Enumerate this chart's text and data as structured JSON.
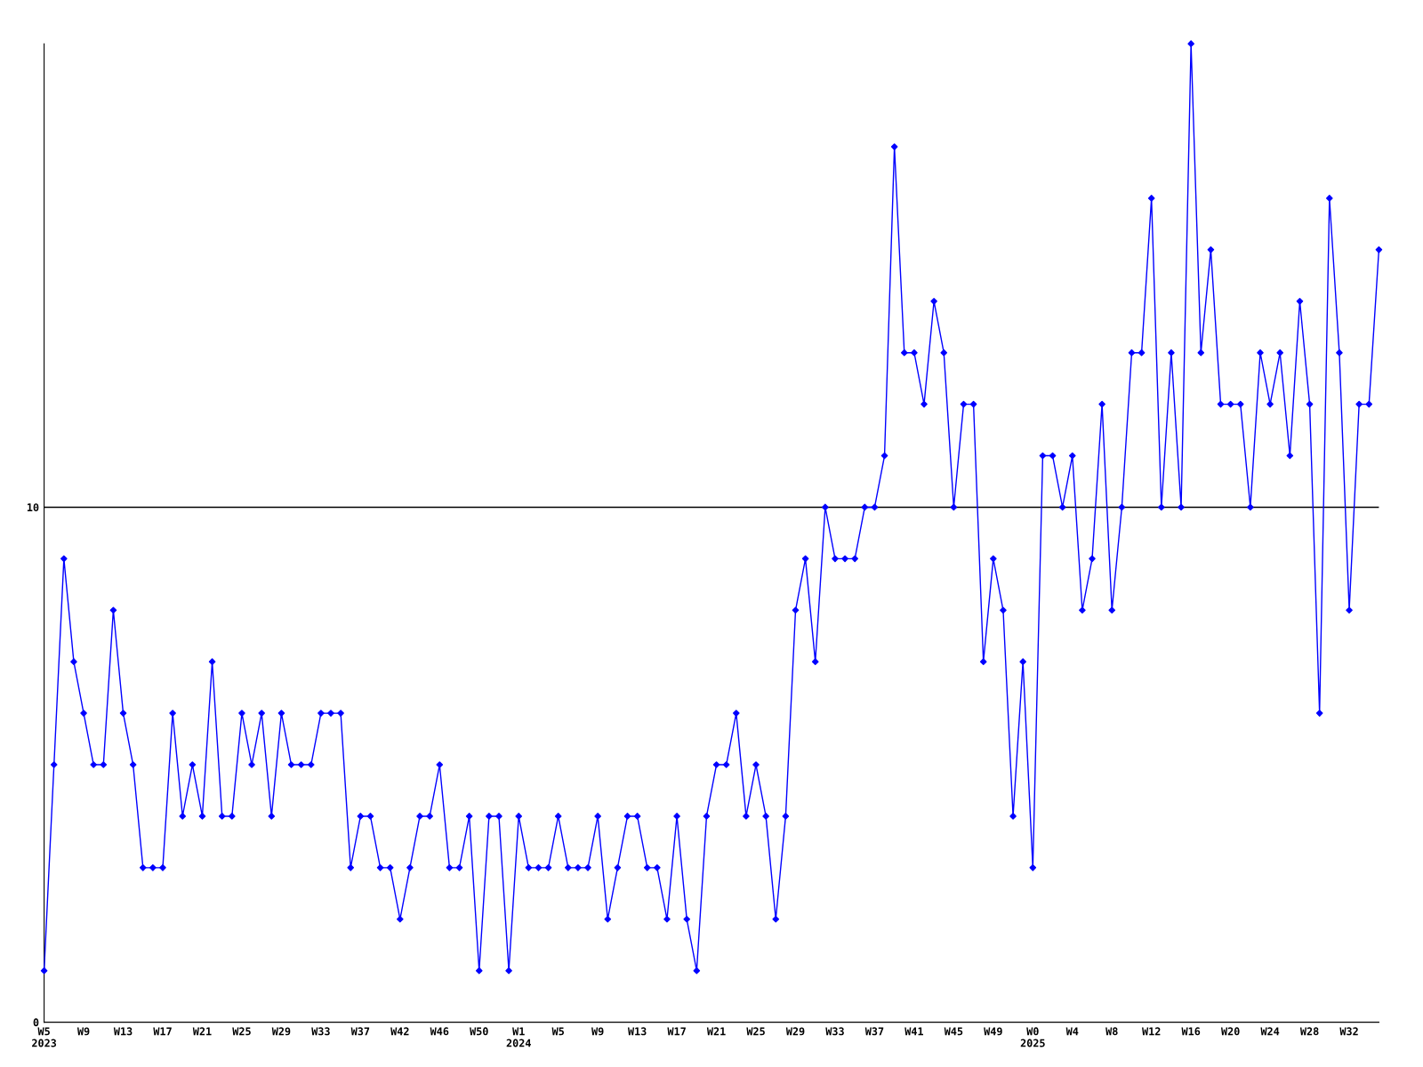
{
  "chart_data": {
    "type": "line",
    "categories": [
      "W5\n2023",
      null,
      null,
      null,
      "W9",
      null,
      null,
      null,
      "W13",
      null,
      null,
      null,
      "W17",
      null,
      null,
      null,
      "W21",
      null,
      null,
      null,
      "W25",
      null,
      null,
      null,
      "W29",
      null,
      null,
      null,
      "W33",
      null,
      null,
      null,
      "W37",
      null,
      null,
      null,
      "W42",
      null,
      null,
      null,
      "W46",
      null,
      null,
      null,
      "W50",
      null,
      null,
      null,
      "W1\n2024",
      null,
      null,
      null,
      "W5",
      null,
      null,
      null,
      "W9",
      null,
      null,
      null,
      "W13",
      null,
      null,
      null,
      "W17",
      null,
      null,
      null,
      "W21",
      null,
      null,
      null,
      "W25",
      null,
      null,
      null,
      "W29",
      null,
      null,
      null,
      "W33",
      null,
      null,
      null,
      "W37",
      null,
      null,
      null,
      "W41",
      null,
      null,
      null,
      "W45",
      null,
      null,
      null,
      "W49",
      null,
      null,
      null,
      "W0\n2025",
      null,
      null,
      null,
      "W4",
      null,
      null,
      null,
      "W8",
      null,
      null,
      null,
      "W12",
      null,
      null,
      null,
      "W16",
      null,
      null,
      null,
      "W20",
      null,
      null,
      null,
      "W24",
      null,
      null,
      null,
      "W28",
      null,
      null,
      null,
      "W32",
      null,
      null,
      null
    ],
    "series": [
      {
        "color": "#0000ff",
        "values": [
          1,
          5,
          9,
          7,
          6,
          5,
          5,
          8,
          6,
          5,
          3,
          3,
          3,
          6,
          4,
          5,
          4,
          7,
          4,
          4,
          6,
          5,
          6,
          4,
          6,
          5,
          5,
          5,
          6,
          6,
          6,
          3,
          4,
          4,
          3,
          3,
          2,
          3,
          4,
          4,
          5,
          3,
          3,
          4,
          1,
          4,
          4,
          1,
          4,
          3,
          3,
          3,
          4,
          3,
          3,
          3,
          4,
          2,
          3,
          4,
          4,
          3,
          3,
          2,
          4,
          2,
          1,
          4,
          5,
          5,
          6,
          4,
          5,
          4,
          2,
          4,
          8,
          9,
          7,
          10,
          9,
          9,
          9,
          10,
          10,
          11,
          17,
          13,
          13,
          12,
          14,
          13,
          10,
          12,
          12,
          7,
          9,
          8,
          4,
          7,
          3,
          11,
          11,
          10,
          11,
          8,
          9,
          12,
          8,
          10,
          13,
          13,
          16,
          10,
          13,
          10,
          19,
          13,
          15,
          12,
          12,
          12,
          10,
          13,
          12,
          13,
          11,
          14,
          12,
          6,
          16,
          13,
          8,
          12,
          12,
          15
        ]
      }
    ],
    "ylim": [
      0,
      19
    ],
    "yticks": [
      0,
      10
    ],
    "grid": "y",
    "marker": "diamond",
    "line_style": "solid",
    "legend": false
  }
}
